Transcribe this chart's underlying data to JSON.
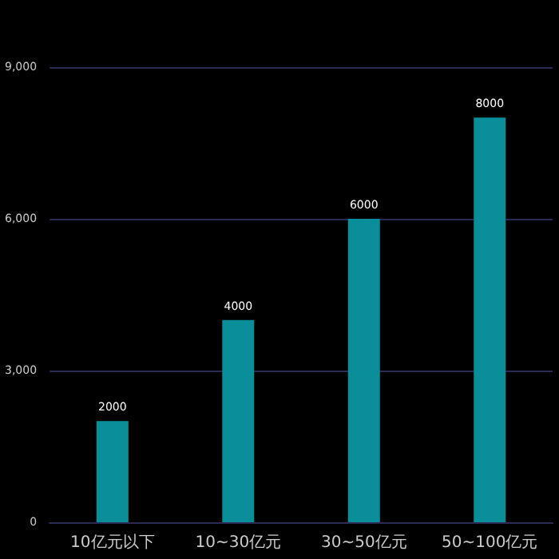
{
  "chart_data": {
    "type": "bar",
    "categories": [
      "10亿元以下",
      "10~30亿元",
      "30~50亿元",
      "50~100亿元"
    ],
    "values": [
      2000,
      4000,
      6000,
      8000
    ],
    "color": "#0a8f9a",
    "ylim": [
      0,
      9000
    ],
    "yticks": [
      0,
      {
        "value": 3000,
        "label": "3,000"
      },
      {
        "value": 6000,
        "label": "6,000"
      },
      {
        "value": 9000,
        "label": "9,000"
      }
    ],
    "grid": "y",
    "data_labels": true
  }
}
